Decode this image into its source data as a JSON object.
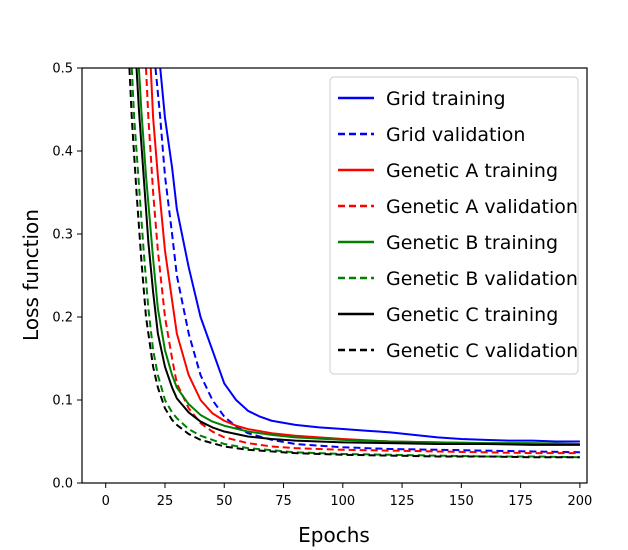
{
  "chart_data": {
    "type": "line",
    "title": "",
    "xlabel": "Epochs",
    "ylabel": "Loss function",
    "xlim": [
      -10,
      203
    ],
    "ylim": [
      0.0,
      0.5
    ],
    "xticks": [
      0,
      25,
      50,
      75,
      100,
      125,
      150,
      175,
      200
    ],
    "yticks": [
      0.0,
      0.1,
      0.2,
      0.3,
      0.4,
      0.5
    ],
    "xtick_labels": [
      "0",
      "25",
      "50",
      "75",
      "100",
      "125",
      "150",
      "175",
      "200"
    ],
    "ytick_labels": [
      "0.0",
      "0.1",
      "0.2",
      "0.3",
      "0.4",
      "0.5"
    ],
    "grid": false,
    "legend_position": "top-right",
    "series": [
      {
        "name": "Grid training",
        "color": "#0000ff",
        "dash": "solid",
        "x": [
          23,
          25,
          28,
          30,
          35,
          40,
          45,
          50,
          55,
          60,
          65,
          70,
          80,
          90,
          100,
          110,
          120,
          130,
          140,
          150,
          160,
          170,
          180,
          190,
          200
        ],
        "y": [
          0.5,
          0.44,
          0.38,
          0.33,
          0.26,
          0.2,
          0.16,
          0.12,
          0.1,
          0.087,
          0.08,
          0.075,
          0.07,
          0.067,
          0.065,
          0.063,
          0.061,
          0.058,
          0.055,
          0.053,
          0.052,
          0.051,
          0.051,
          0.05,
          0.05
        ]
      },
      {
        "name": "Grid validation",
        "color": "#0000ff",
        "dash": "dashed",
        "x": [
          21,
          23,
          25,
          28,
          30,
          35,
          40,
          45,
          50,
          55,
          60,
          70,
          80,
          90,
          100,
          120,
          140,
          160,
          180,
          200
        ],
        "y": [
          0.5,
          0.44,
          0.37,
          0.3,
          0.25,
          0.18,
          0.13,
          0.1,
          0.08,
          0.068,
          0.06,
          0.052,
          0.047,
          0.045,
          0.043,
          0.041,
          0.04,
          0.039,
          0.038,
          0.037
        ]
      },
      {
        "name": "Genetic A training",
        "color": "#ff0000",
        "dash": "solid",
        "x": [
          19,
          20,
          22,
          25,
          28,
          30,
          35,
          40,
          45,
          50,
          55,
          60,
          70,
          80,
          100,
          120,
          140,
          160,
          180,
          200
        ],
        "y": [
          0.5,
          0.44,
          0.37,
          0.28,
          0.22,
          0.18,
          0.13,
          0.1,
          0.084,
          0.075,
          0.069,
          0.065,
          0.06,
          0.057,
          0.053,
          0.05,
          0.049,
          0.048,
          0.047,
          0.047
        ]
      },
      {
        "name": "Genetic A validation",
        "color": "#ff0000",
        "dash": "dashed",
        "x": [
          17,
          18,
          20,
          22,
          25,
          28,
          30,
          35,
          40,
          45,
          50,
          60,
          70,
          80,
          100,
          120,
          140,
          160,
          180,
          200
        ],
        "y": [
          0.5,
          0.44,
          0.35,
          0.28,
          0.2,
          0.15,
          0.12,
          0.09,
          0.072,
          0.062,
          0.055,
          0.048,
          0.044,
          0.042,
          0.04,
          0.039,
          0.038,
          0.037,
          0.036,
          0.036
        ]
      },
      {
        "name": "Genetic B training",
        "color": "#008000",
        "dash": "solid",
        "x": [
          14,
          15,
          17,
          20,
          22,
          25,
          28,
          30,
          35,
          40,
          45,
          50,
          60,
          70,
          80,
          100,
          120,
          140,
          160,
          180,
          200
        ],
        "y": [
          0.5,
          0.45,
          0.37,
          0.27,
          0.21,
          0.16,
          0.13,
          0.115,
          0.095,
          0.082,
          0.074,
          0.069,
          0.062,
          0.058,
          0.055,
          0.052,
          0.05,
          0.049,
          0.048,
          0.048,
          0.047
        ]
      },
      {
        "name": "Genetic B validation",
        "color": "#008000",
        "dash": "dashed",
        "x": [
          11,
          12,
          14,
          16,
          18,
          20,
          22,
          25,
          28,
          30,
          35,
          40,
          50,
          60,
          80,
          100,
          120,
          140,
          160,
          180,
          200
        ],
        "y": [
          0.5,
          0.44,
          0.36,
          0.28,
          0.21,
          0.16,
          0.13,
          0.1,
          0.085,
          0.078,
          0.065,
          0.057,
          0.047,
          0.042,
          0.037,
          0.035,
          0.034,
          0.033,
          0.032,
          0.032,
          0.031
        ]
      },
      {
        "name": "Genetic C training",
        "color": "#000000",
        "dash": "solid",
        "x": [
          13,
          14,
          16,
          18,
          20,
          22,
          25,
          28,
          30,
          35,
          40,
          45,
          50,
          60,
          70,
          80,
          100,
          120,
          140,
          160,
          180,
          200
        ],
        "y": [
          0.5,
          0.45,
          0.37,
          0.29,
          0.23,
          0.18,
          0.14,
          0.115,
          0.102,
          0.085,
          0.074,
          0.067,
          0.062,
          0.056,
          0.053,
          0.051,
          0.049,
          0.048,
          0.047,
          0.047,
          0.046,
          0.046
        ]
      },
      {
        "name": "Genetic C validation",
        "color": "#000000",
        "dash": "dashed",
        "x": [
          10,
          11,
          13,
          15,
          17,
          20,
          22,
          25,
          28,
          30,
          35,
          40,
          50,
          60,
          80,
          100,
          120,
          140,
          160,
          180,
          200
        ],
        "y": [
          0.5,
          0.44,
          0.35,
          0.27,
          0.2,
          0.14,
          0.115,
          0.09,
          0.076,
          0.07,
          0.059,
          0.052,
          0.044,
          0.04,
          0.036,
          0.034,
          0.033,
          0.032,
          0.032,
          0.031,
          0.031
        ]
      }
    ]
  }
}
